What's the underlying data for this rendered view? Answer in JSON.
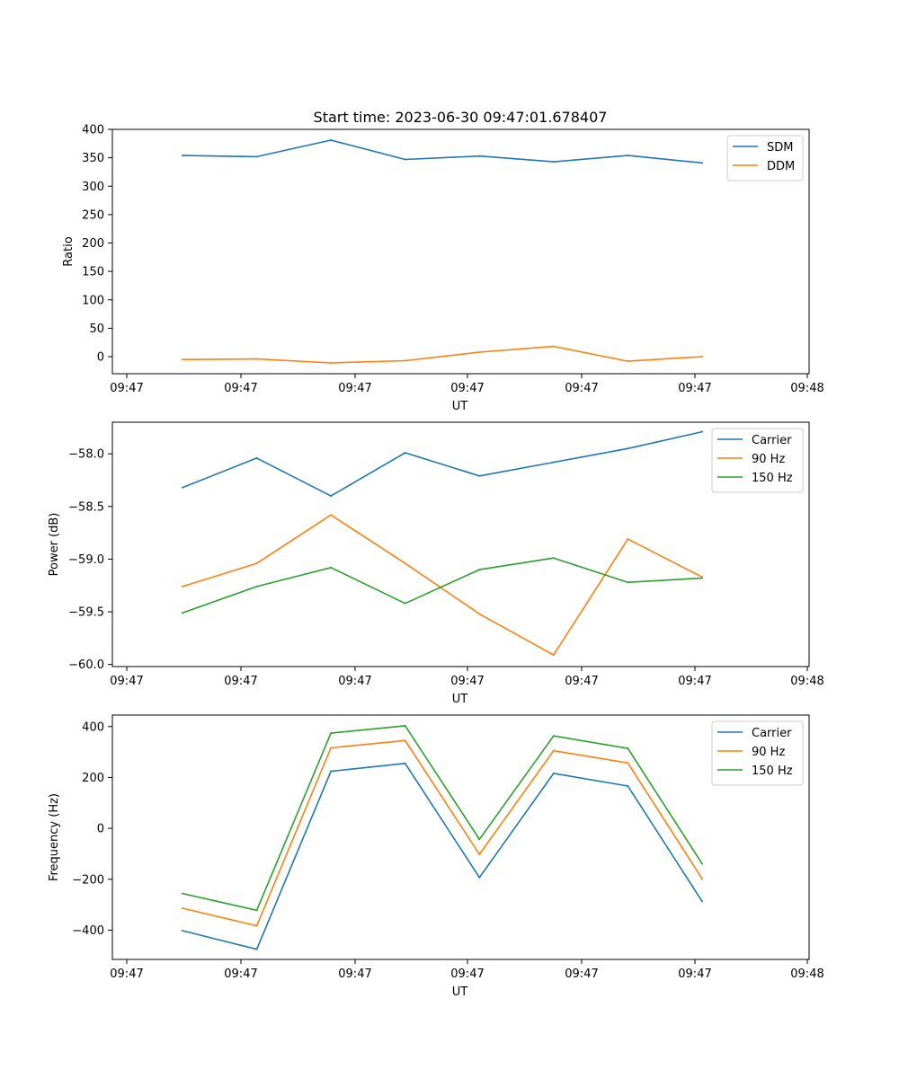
{
  "title": "Start time: 2023-06-30 09:47:01.678407",
  "colors": {
    "c0": "#1f77b4",
    "c1": "#ff7f0e",
    "c2": "#2ca02c"
  },
  "chart_data": [
    {
      "type": "line",
      "xlabel": "UT",
      "ylabel": "Ratio",
      "x_tick_labels": [
        "09:47",
        "09:47",
        "09:47",
        "09:47",
        "09:47",
        "09:47",
        "09:48"
      ],
      "y_ticks": [
        0,
        50,
        100,
        150,
        200,
        250,
        300,
        350,
        400
      ],
      "ylim": [
        -30,
        400
      ],
      "legend": "top-right",
      "x": [
        1,
        2,
        3,
        4,
        5,
        6,
        7,
        8
      ],
      "series": [
        {
          "name": "SDM",
          "color": "#1f77b4",
          "values": [
            354,
            352,
            381,
            347,
            353,
            343,
            354,
            341
          ]
        },
        {
          "name": "DDM",
          "color": "#ff7f0e",
          "values": [
            -5,
            -4,
            -11,
            -7,
            8,
            18,
            -8,
            0
          ]
        }
      ]
    },
    {
      "type": "line",
      "xlabel": "UT",
      "ylabel": "Power (dB)",
      "x_tick_labels": [
        "09:47",
        "09:47",
        "09:47",
        "09:47",
        "09:47",
        "09:47",
        "09:48"
      ],
      "y_ticks": [
        -60.0,
        -59.5,
        -59.0,
        -58.5,
        -58.0
      ],
      "y_tick_labels": [
        "−60.0",
        "−59.5",
        "−59.0",
        "−58.5",
        "−58.0"
      ],
      "ylim": [
        -60.02,
        -57.7
      ],
      "legend": "top-right",
      "x": [
        1,
        2,
        3,
        4,
        5,
        6,
        7,
        8
      ],
      "series": [
        {
          "name": "Carrier",
          "color": "#1f77b4",
          "values": [
            -58.32,
            -58.04,
            -58.4,
            -57.99,
            -58.21,
            -58.08,
            -57.95,
            -57.79
          ]
        },
        {
          "name": "90 Hz",
          "color": "#ff7f0e",
          "values": [
            -59.26,
            -59.04,
            -58.58,
            -59.04,
            -59.52,
            -59.91,
            -58.81,
            -59.17
          ]
        },
        {
          "name": "150 Hz",
          "color": "#2ca02c",
          "values": [
            -59.51,
            -59.26,
            -59.08,
            -59.42,
            -59.1,
            -58.99,
            -59.22,
            -59.18
          ]
        }
      ]
    },
    {
      "type": "line",
      "xlabel": "UT",
      "ylabel": "Frequency (Hz)",
      "x_tick_labels": [
        "09:47",
        "09:47",
        "09:47",
        "09:47",
        "09:47",
        "09:47",
        "09:48"
      ],
      "y_ticks": [
        -400,
        -200,
        0,
        200,
        400
      ],
      "y_tick_labels": [
        "−400",
        "−200",
        "0",
        "200",
        "400"
      ],
      "ylim": [
        -515,
        445
      ],
      "legend": "top-right",
      "x": [
        1,
        2,
        3,
        4,
        5,
        6,
        7,
        8
      ],
      "series": [
        {
          "name": "Carrier",
          "color": "#1f77b4",
          "values": [
            -402,
            -475,
            224,
            255,
            -193,
            216,
            166,
            -287
          ]
        },
        {
          "name": "90 Hz",
          "color": "#ff7f0e",
          "values": [
            -314,
            -383,
            316,
            345,
            -102,
            305,
            257,
            -198
          ]
        },
        {
          "name": "150 Hz",
          "color": "#2ca02c",
          "values": [
            -256,
            -322,
            374,
            403,
            -43,
            363,
            314,
            -139
          ]
        }
      ]
    }
  ]
}
